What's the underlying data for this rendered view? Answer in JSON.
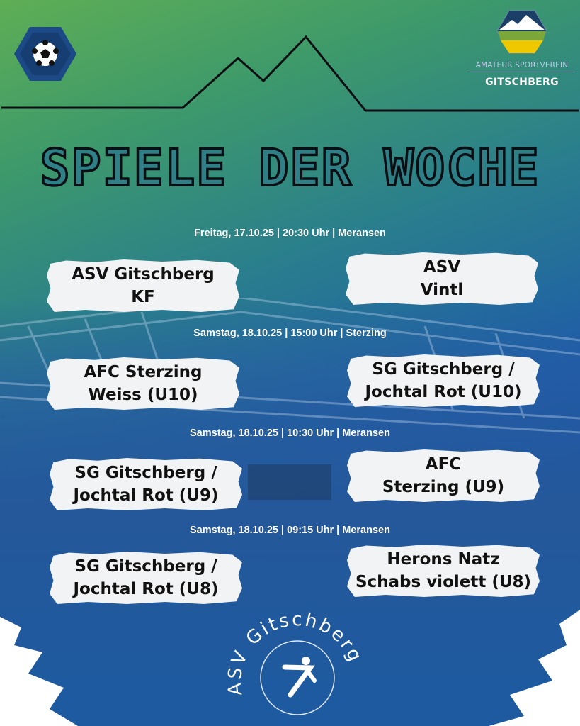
{
  "title": "SPIELE DER WOCHE",
  "logo": {
    "subtitle": "AMATEUR SPORTVEREIN",
    "name": "GITSCHBERG"
  },
  "badge_icon": "soccer-ball-icon",
  "colors": {
    "green": "#5fae55",
    "blue": "#0a47b0",
    "logo_green": "#7aa63a",
    "logo_yellow": "#f0c800",
    "logo_navy": "#1b3f66"
  },
  "matches": [
    {
      "date": "Freitag, 17.10.25 | 20:30 Uhr | Meransen",
      "home": "ASV Gitschberg\nKF",
      "away": "ASV\nVintl"
    },
    {
      "date": "Samstag, 18.10.25 | 15:00 Uhr | Sterzing",
      "home": "AFC Sterzing\nWeiss (U10)",
      "away": "SG Gitschberg /\nJochtal Rot (U10)"
    },
    {
      "date": "Samstag, 18.10.25 | 10:30 Uhr | Meransen",
      "home": "SG Gitschberg /\nJochtal Rot (U9)",
      "away": "AFC\nSterzing (U9)"
    },
    {
      "date": "Samstag, 18.10.25 | 09:15 Uhr | Meransen",
      "home": "SG Gitschberg /\nJochtal Rot (U8)",
      "away": "Herons Natz\nSchabs violett (U8)"
    }
  ],
  "emblem": {
    "text": "ASV Gitschberg",
    "icon": "soccer-player-icon"
  }
}
